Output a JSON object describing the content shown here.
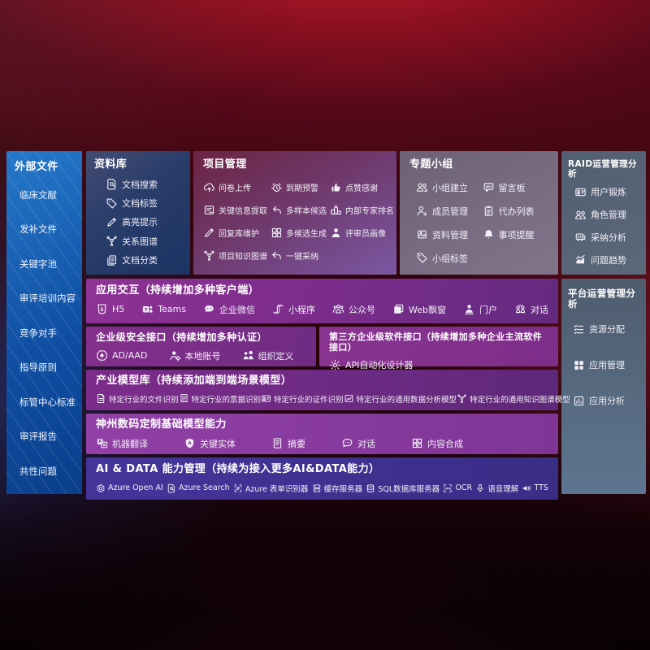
{
  "palette": {
    "sidebar_blue": "#1465b4",
    "repo_navy": "#283c6a",
    "project_maroon_purple": "#6f3a6e",
    "group_mauve": "#7a6d83",
    "ops_slate": "#5a6879",
    "row_purple": "#7b2d8c",
    "foundation_purple": "#8a3aa0",
    "aidata_indigo": "#3e3191",
    "background_red": "#8c1020"
  },
  "sidebar": {
    "title": "外部文件",
    "items": [
      {
        "label": "临床文献"
      },
      {
        "label": "发补文件"
      },
      {
        "label": "关键字池"
      },
      {
        "label": "审评培训内容"
      },
      {
        "label": "竞争对手"
      },
      {
        "label": "指导原则"
      },
      {
        "label": "标管中心标准"
      },
      {
        "label": "审评报告"
      },
      {
        "label": "共性问题"
      }
    ]
  },
  "sections": {
    "repository": {
      "title": "资料库",
      "items": [
        {
          "icon": "doc-search",
          "label": "文档搜索"
        },
        {
          "icon": "tag",
          "label": "文档标签"
        },
        {
          "icon": "pencil",
          "label": "高亮提示"
        },
        {
          "icon": "knowledge-graph",
          "label": "关系图谱"
        },
        {
          "icon": "doc-stack",
          "label": "文档分类"
        }
      ]
    },
    "project": {
      "title": "项目管理",
      "items": [
        {
          "icon": "cloud-upload",
          "label": "问卷上传"
        },
        {
          "icon": "alarm",
          "label": "到期预警"
        },
        {
          "icon": "thumbs-up",
          "label": "点赞感谢"
        },
        {
          "icon": "doc-extract",
          "label": "关键信息提取"
        },
        {
          "icon": "reply-arrow",
          "label": "多样本候选"
        },
        {
          "icon": "podium",
          "label": "内部专家排名"
        },
        {
          "icon": "pencil",
          "label": "回复库维护"
        },
        {
          "icon": "puzzle-grid",
          "label": "多候选生成"
        },
        {
          "icon": "person",
          "label": "评审员画像"
        },
        {
          "icon": "knowledge-graph",
          "label": "项目知识图谱"
        },
        {
          "icon": "adopt-arrow",
          "label": "一键采纳"
        }
      ]
    },
    "groups": {
      "title": "专题小组",
      "items": [
        {
          "icon": "people",
          "label": "小组建立"
        },
        {
          "icon": "message-board",
          "label": "留言板"
        },
        {
          "icon": "person-add",
          "label": "成员管理"
        },
        {
          "icon": "clipboard",
          "label": "代办列表"
        },
        {
          "icon": "photo-album",
          "label": "资料管理"
        },
        {
          "icon": "bell",
          "label": "事项提醒"
        },
        {
          "icon": "tag",
          "label": "小组标签"
        }
      ]
    },
    "raid": {
      "title": "RAID运营管理分析",
      "items": [
        {
          "icon": "id-card",
          "label": "用户锻炼"
        },
        {
          "icon": "people",
          "label": "角色管理"
        },
        {
          "icon": "chat-qa",
          "label": "采纳分析"
        },
        {
          "icon": "trend-chart",
          "label": "问题趋势"
        }
      ]
    },
    "platform": {
      "title": "平台运营管理分析",
      "items": [
        {
          "icon": "task-list",
          "label": "资源分配"
        },
        {
          "icon": "app-grid",
          "label": "应用管理"
        },
        {
          "icon": "chart-doc",
          "label": "应用分析"
        }
      ]
    },
    "interaction": {
      "title": "应用交互（持续增加多种客户端）",
      "items": [
        {
          "icon": "html5",
          "label": "H5"
        },
        {
          "icon": "teams",
          "label": "Teams"
        },
        {
          "icon": "wechat-chat",
          "label": "企业微信"
        },
        {
          "icon": "miniprogram",
          "label": "小程序"
        },
        {
          "icon": "people-group",
          "label": "公众号"
        },
        {
          "icon": "browser-window",
          "label": "Web飘窗"
        },
        {
          "icon": "person-portal",
          "label": "门户"
        },
        {
          "icon": "people-chat",
          "label": "对话"
        }
      ]
    },
    "security": {
      "title": "企业级安全接口（持续增加多种认证）",
      "items": [
        {
          "icon": "shield-diamond",
          "label": "AD/AAD"
        },
        {
          "icon": "person-gear",
          "label": "本地账号"
        },
        {
          "icon": "org-people",
          "label": "组织定义"
        }
      ]
    },
    "thirdparty": {
      "title": "第三方企业级软件接口（持续增加多种企业主流软件接口）",
      "items": [
        {
          "icon": "api-gear",
          "label": "API自动化设计器"
        }
      ]
    },
    "industry": {
      "title": "产业模型库（持续添加端到端场景模型）",
      "items": [
        {
          "icon": "doc-file",
          "label": "特定行业的文件识别"
        },
        {
          "icon": "receipt",
          "label": "特定行业的票据识别"
        },
        {
          "icon": "id-card",
          "label": "特定行业的证件识别"
        },
        {
          "icon": "image-chart",
          "label": "特定行业的通用数据分析模型"
        },
        {
          "icon": "knowledge-graph",
          "label": "特定行业的通用知识图谱模型"
        }
      ]
    },
    "foundation": {
      "title": "神州数码定制基础模型能力",
      "items": [
        {
          "icon": "translate",
          "label": "机器翻译"
        },
        {
          "icon": "entity-shield",
          "label": "关键实体"
        },
        {
          "icon": "doc-summary",
          "label": "摘要"
        },
        {
          "icon": "chat-bubble",
          "label": "对话"
        },
        {
          "icon": "puzzle-grid",
          "label": "内容合成"
        }
      ]
    },
    "aidata": {
      "title": "AI & DATA 能力管理（持续为接入更多AI&DATA能力）",
      "items": [
        {
          "icon": "openai",
          "label": "Azure Open AI"
        },
        {
          "icon": "doc-search",
          "label": "Azure Search"
        },
        {
          "icon": "form-brackets",
          "label": "Azure 表单识别器"
        },
        {
          "icon": "cache-server",
          "label": "缓存服务器"
        },
        {
          "icon": "sql-database",
          "label": "SQL数据库服务器"
        },
        {
          "icon": "ocr-brackets",
          "label": "OCR"
        },
        {
          "icon": "speech-mic",
          "label": "语音理解"
        },
        {
          "icon": "tts-speaker",
          "label": "TTS"
        }
      ]
    }
  }
}
